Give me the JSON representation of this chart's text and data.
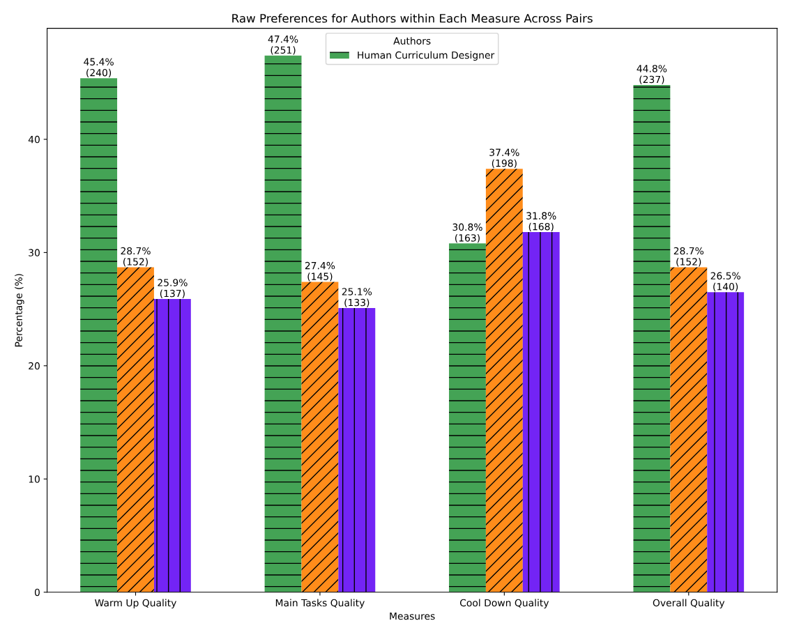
{
  "chart_data": {
    "type": "bar",
    "title": "Raw Preferences for Authors within Each Measure Across Pairs",
    "xlabel": "Measures",
    "ylabel": "Percentage (%)",
    "legend_title": "Authors",
    "legend": "top center",
    "grid": false,
    "categories": [
      "Warm Up Quality",
      "Main Tasks Quality",
      "Cool Down Quality",
      "Overall Quality"
    ],
    "ylim": [
      0,
      49.8
    ],
    "yticks": [
      0,
      10,
      20,
      30,
      40
    ],
    "series": [
      {
        "name": "Human Curriculum Designer",
        "color": "#44a355",
        "values": [
          45.4,
          47.4,
          30.8,
          44.8
        ],
        "value_labels": [
          "45.4%\n(240)",
          "47.4%\n(251)",
          "30.8%\n(163)",
          "44.8%\n(237)"
        ]
      },
      {
        "color": "#ff8c1a",
        "values": [
          28.7,
          27.4,
          37.4,
          28.7
        ],
        "value_labels": [
          "28.7%\n(152)",
          "27.4%\n(145)",
          "37.4%\n(198)",
          "28.7%\n(152)"
        ]
      },
      {
        "color": "#7324f5",
        "values": [
          25.9,
          25.1,
          31.8,
          26.5
        ],
        "value_labels": [
          "25.9%\n(137)",
          "25.1%\n(133)",
          "31.8%\n(168)",
          "26.5%\n(140)"
        ]
      }
    ]
  }
}
